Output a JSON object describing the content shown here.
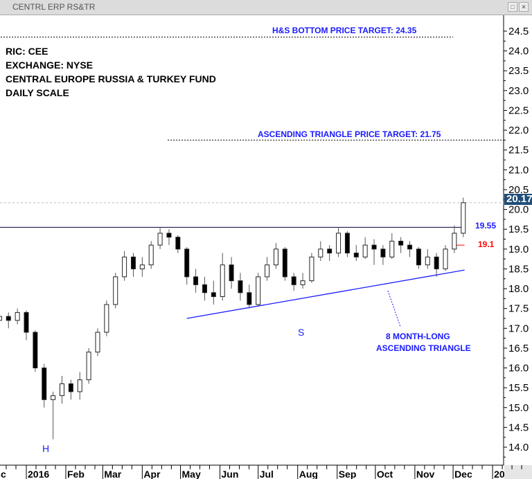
{
  "window": {
    "title": "CENTRL ERP RS&TR"
  },
  "info": [
    "RIC: CEE",
    "EXCHANGE: NYSE",
    "CENTRAL EUROPE RUSSIA & TURKEY FUND",
    "DAILY SCALE"
  ],
  "chart_data": {
    "type": "candlestick",
    "ylim": [
      14.0,
      24.5
    ],
    "y_ticks": [
      "14.0",
      "14.5",
      "15.0",
      "15.5",
      "16.0",
      "16.5",
      "17.0",
      "17.5",
      "18.0",
      "18.5",
      "19.0",
      "19.5",
      "20.0",
      "20.5",
      "21.0",
      "21.5",
      "22.0",
      "22.5",
      "23.0",
      "23.5",
      "24.0",
      "24.5"
    ],
    "x_tick_labels": [
      [
        "2015-12-01",
        "c"
      ],
      [
        "2016-01-01",
        "2016"
      ],
      [
        "2016-02-01",
        "Feb"
      ],
      [
        "2016-03-01",
        "Mar"
      ],
      [
        "2016-04-01",
        "Apr"
      ],
      [
        "2016-05-01",
        "May"
      ],
      [
        "2016-06-01",
        "Jun"
      ],
      [
        "2016-07-01",
        "Jul"
      ],
      [
        "2016-08-01",
        "Aug"
      ],
      [
        "2016-09-01",
        "Sep"
      ],
      [
        "2016-10-01",
        "Oct"
      ],
      [
        "2016-11-01",
        "Nov"
      ],
      [
        "2016-12-01",
        "Dec"
      ],
      [
        "2017-01-01",
        "20"
      ]
    ],
    "last_price": "20.17",
    "ohlc": [
      [
        "2015-12-11",
        17.2,
        17.45,
        17.0,
        17.3
      ],
      [
        "2015-12-18",
        17.3,
        17.4,
        17.0,
        17.2
      ],
      [
        "2015-12-25",
        17.2,
        17.5,
        17.1,
        17.4
      ],
      [
        "2016-01-01",
        17.4,
        17.45,
        16.7,
        16.9
      ],
      [
        "2016-01-08",
        16.9,
        16.95,
        15.9,
        16.0
      ],
      [
        "2016-01-15",
        16.0,
        16.1,
        15.0,
        15.2
      ],
      [
        "2016-01-22",
        15.2,
        15.4,
        14.2,
        15.3
      ],
      [
        "2016-01-29",
        15.3,
        15.8,
        15.1,
        15.6
      ],
      [
        "2016-02-05",
        15.6,
        15.7,
        15.2,
        15.4
      ],
      [
        "2016-02-12",
        15.4,
        15.9,
        15.2,
        15.7
      ],
      [
        "2016-02-19",
        15.7,
        16.5,
        15.6,
        16.4
      ],
      [
        "2016-02-26",
        16.4,
        17.0,
        16.3,
        16.9
      ],
      [
        "2016-03-04",
        16.9,
        17.7,
        16.8,
        17.6
      ],
      [
        "2016-03-11",
        17.6,
        18.4,
        17.5,
        18.3
      ],
      [
        "2016-03-18",
        18.3,
        18.95,
        18.2,
        18.8
      ],
      [
        "2016-03-25",
        18.8,
        18.9,
        18.3,
        18.5
      ],
      [
        "2016-04-01",
        18.5,
        18.8,
        18.3,
        18.6
      ],
      [
        "2016-04-08",
        18.6,
        19.2,
        18.5,
        19.1
      ],
      [
        "2016-04-15",
        19.1,
        19.55,
        19.0,
        19.4
      ],
      [
        "2016-04-22",
        19.4,
        19.5,
        19.1,
        19.3
      ],
      [
        "2016-04-29",
        19.3,
        19.35,
        18.9,
        19.0
      ],
      [
        "2016-05-06",
        19.0,
        19.05,
        18.1,
        18.3
      ],
      [
        "2016-05-13",
        18.3,
        18.5,
        17.9,
        18.1
      ],
      [
        "2016-05-20",
        18.1,
        18.3,
        17.7,
        17.9
      ],
      [
        "2016-05-27",
        17.9,
        18.2,
        17.6,
        17.8
      ],
      [
        "2016-06-03",
        17.8,
        18.9,
        17.7,
        18.6
      ],
      [
        "2016-06-10",
        18.6,
        18.8,
        18.0,
        18.2
      ],
      [
        "2016-06-17",
        18.2,
        18.4,
        17.7,
        17.9
      ],
      [
        "2016-06-24",
        17.9,
        18.1,
        17.5,
        17.6
      ],
      [
        "2016-07-01",
        17.6,
        18.4,
        17.55,
        18.3
      ],
      [
        "2016-07-08",
        18.3,
        18.8,
        18.2,
        18.6
      ],
      [
        "2016-07-15",
        18.6,
        19.15,
        18.5,
        19.0
      ],
      [
        "2016-07-22",
        19.0,
        19.05,
        18.2,
        18.3
      ],
      [
        "2016-07-29",
        18.3,
        18.4,
        17.95,
        18.1
      ],
      [
        "2016-08-05",
        18.1,
        18.4,
        18.0,
        18.2
      ],
      [
        "2016-08-12",
        18.2,
        18.9,
        18.15,
        18.8
      ],
      [
        "2016-08-19",
        18.8,
        19.2,
        18.7,
        19.0
      ],
      [
        "2016-08-26",
        19.0,
        19.1,
        18.7,
        18.9
      ],
      [
        "2016-09-02",
        18.9,
        19.55,
        18.8,
        19.4
      ],
      [
        "2016-09-09",
        19.4,
        19.45,
        18.8,
        18.9
      ],
      [
        "2016-09-16",
        18.9,
        19.1,
        18.7,
        18.8
      ],
      [
        "2016-09-23",
        18.8,
        19.3,
        18.75,
        19.1
      ],
      [
        "2016-09-30",
        19.1,
        19.25,
        18.6,
        19.0
      ],
      [
        "2016-10-07",
        19.0,
        19.1,
        18.6,
        18.8
      ],
      [
        "2016-10-14",
        18.8,
        19.4,
        18.75,
        19.2
      ],
      [
        "2016-10-21",
        19.2,
        19.3,
        18.9,
        19.1
      ],
      [
        "2016-10-28",
        19.1,
        19.2,
        18.8,
        19.0
      ],
      [
        "2016-11-04",
        19.0,
        19.05,
        18.5,
        18.6
      ],
      [
        "2016-11-11",
        18.6,
        19.0,
        18.5,
        18.8
      ],
      [
        "2016-11-18",
        18.8,
        18.9,
        18.3,
        18.5
      ],
      [
        "2016-11-25",
        18.5,
        19.1,
        18.45,
        19.0
      ],
      [
        "2016-12-02",
        19.0,
        19.6,
        18.9,
        19.4
      ],
      [
        "2016-12-09",
        19.4,
        20.3,
        19.3,
        20.17
      ]
    ],
    "annotations": {
      "hs_target": {
        "label": "H&S BOTTOM PRICE TARGET: 24.35",
        "value": 24.35,
        "start": "2015-12-01",
        "end": "2016-12-01"
      },
      "triangle_target": {
        "label": "ASCENDING TRIANGLE PRICE TARGET: 21.75",
        "value": 21.75,
        "start": "2016-04-21",
        "end": "2017-01-15"
      },
      "resistance": {
        "label": "19.55",
        "value": 19.55,
        "end": "2016-12-10"
      },
      "stop": {
        "label": "19.1",
        "value": 19.1,
        "start": "2016-12-01",
        "end": "2016-12-10"
      },
      "trendline": {
        "start": [
          "2016-05-06",
          17.25
        ],
        "end": [
          "2016-12-10",
          18.47
        ]
      },
      "head": "H",
      "shoulder": "S",
      "triangle_label": [
        "8 MONTH-LONG",
        "ASCENDING TRIANGLE"
      ]
    },
    "colors": {
      "up_body": "#ffffff",
      "down_body": "#000000",
      "wick": "#555555",
      "annotation": "#1a1aff",
      "stop": "#ff0000",
      "price_box": "#1f4e79"
    }
  }
}
